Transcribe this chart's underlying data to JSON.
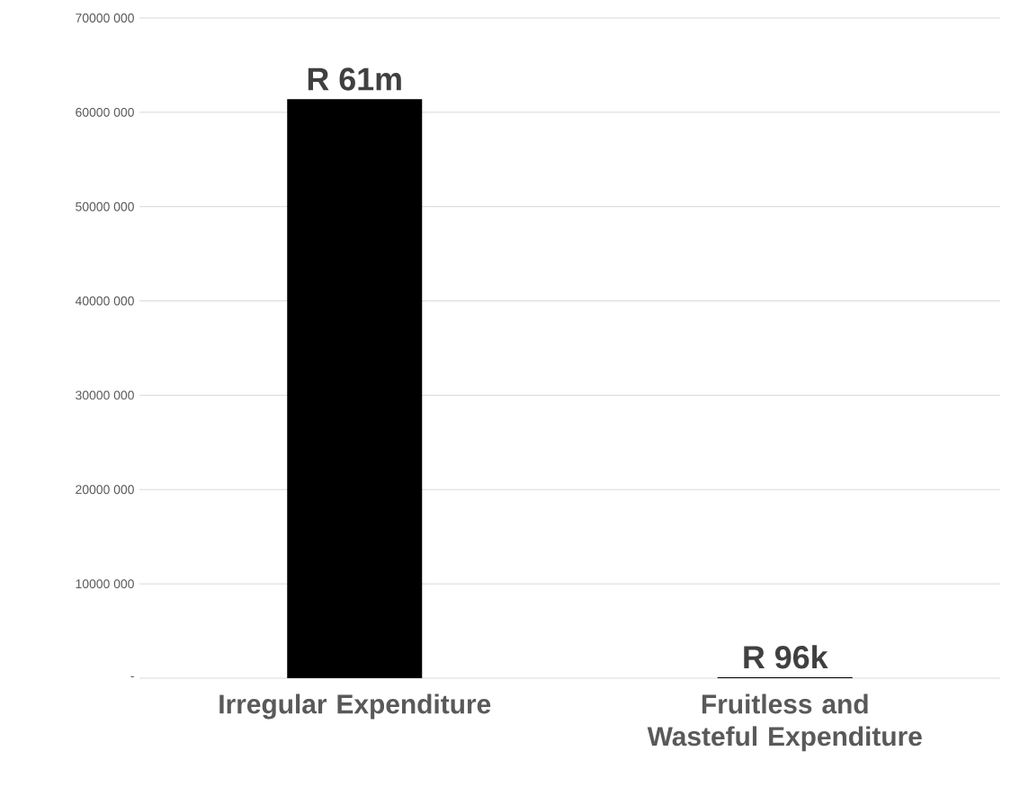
{
  "chart_data": {
    "type": "bar",
    "categories": [
      "Irregular Expenditure",
      "Fruitless and Wasteful Expenditure"
    ],
    "values": [
      61400000,
      96000
    ],
    "value_labels": [
      "R 61m",
      "R 96k"
    ],
    "color": "#000000",
    "ylim": [
      0,
      70000000
    ],
    "yticks": [
      {
        "value": 0,
        "label": "-"
      },
      {
        "value": 10000000,
        "label": "10000 000"
      },
      {
        "value": 20000000,
        "label": "20000 000"
      },
      {
        "value": 30000000,
        "label": "30000 000"
      },
      {
        "value": 40000000,
        "label": "40000 000"
      },
      {
        "value": 50000000,
        "label": "50000 000"
      },
      {
        "value": 60000000,
        "label": "60000 000"
      },
      {
        "value": 70000000,
        "label": "70000 000"
      }
    ],
    "grid": "y"
  }
}
